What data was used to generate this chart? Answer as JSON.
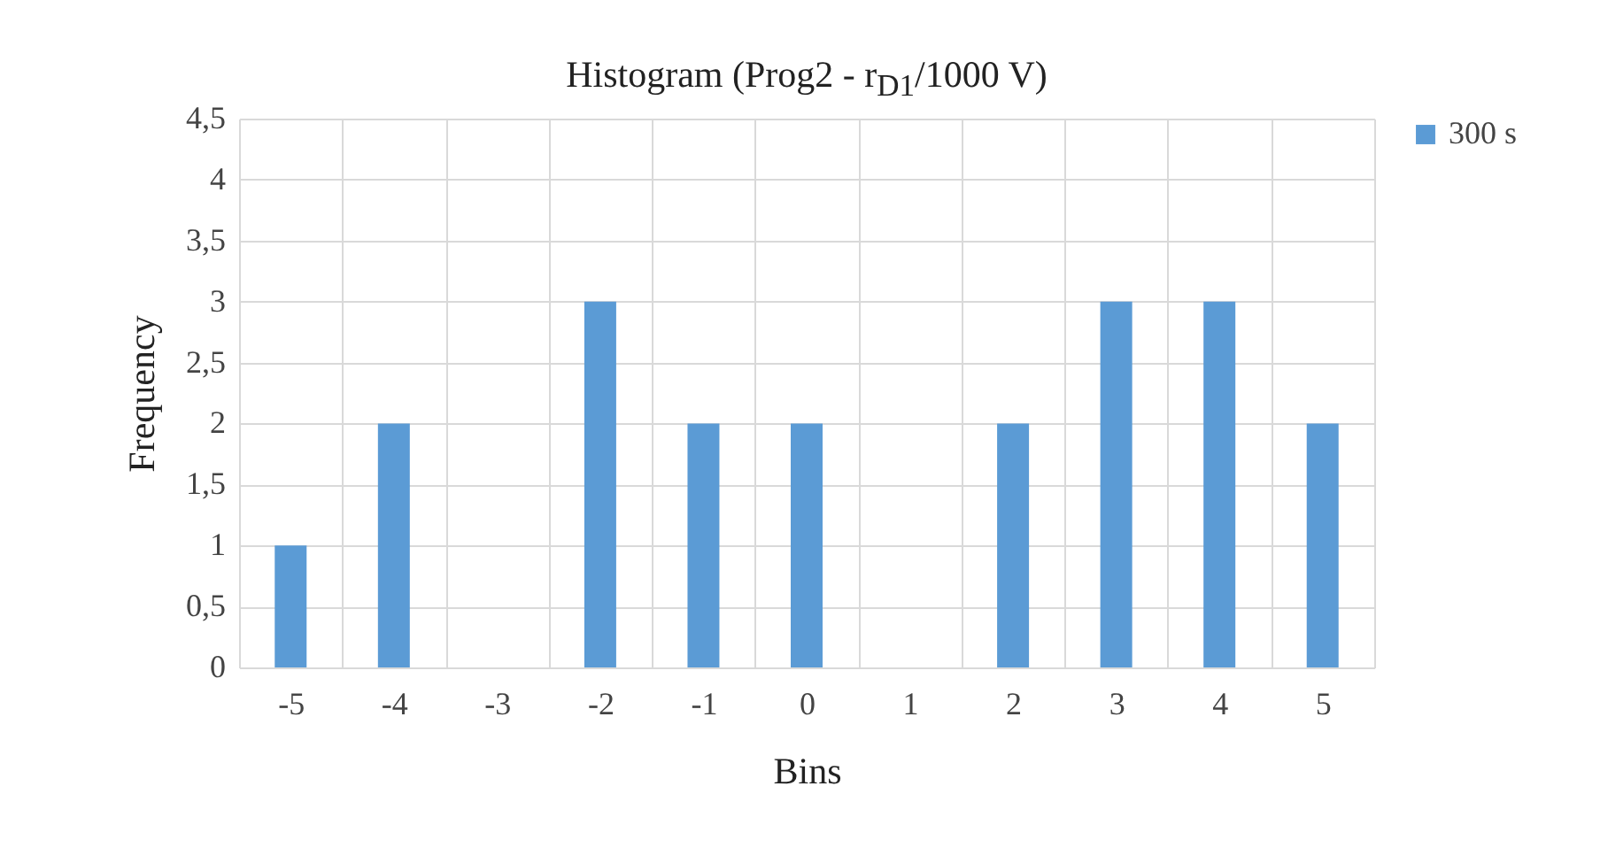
{
  "chart_data": {
    "type": "bar",
    "title": "Histogram (Prog2 - r$_{D1}$/1000 V)",
    "xlabel": "Bins",
    "ylabel": "Frequency",
    "categories": [
      "-5",
      "-4",
      "-3",
      "-2",
      "-1",
      "0",
      "1",
      "2",
      "3",
      "4",
      "5"
    ],
    "series": [
      {
        "name": "300 s",
        "color": "#5b9bd5",
        "values": [
          1,
          2,
          0,
          3,
          2,
          2,
          0,
          2,
          3,
          3,
          2
        ]
      }
    ],
    "ylim": [
      0,
      4.5
    ],
    "yticks": [
      0,
      {
        "value": 0.5,
        "label": "0,5"
      },
      1,
      {
        "value": 1.5,
        "label": "1,5"
      },
      2,
      {
        "value": 2.5,
        "label": "2,5"
      },
      3,
      {
        "value": 3.5,
        "label": "3,5"
      },
      4,
      {
        "value": 4.5,
        "label": "4,5"
      }
    ],
    "grid": true,
    "legend": "right"
  }
}
